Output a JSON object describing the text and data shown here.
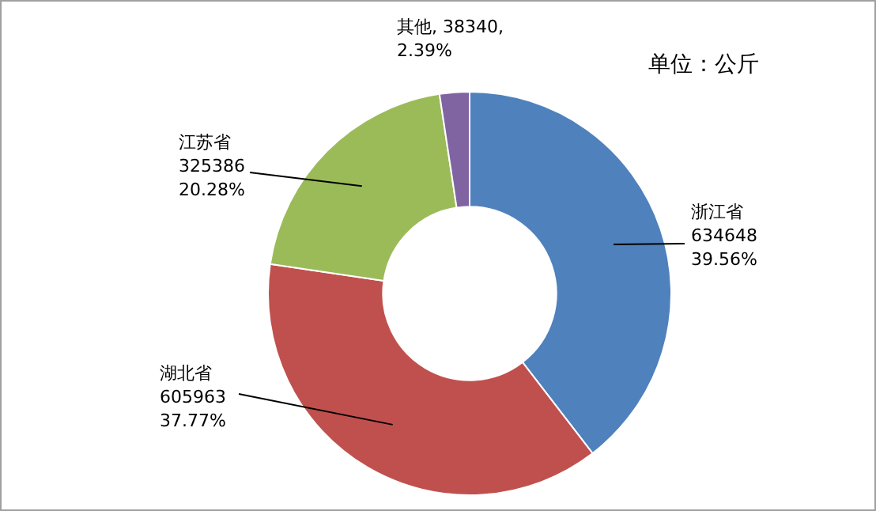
{
  "chart_data": {
    "type": "donut",
    "categories": [
      "浙江省",
      "湖北省",
      "江苏省",
      "其他"
    ],
    "values": [
      634648,
      605963,
      325386,
      38340
    ],
    "colors": [
      "#4f81bd",
      "#c0504d",
      "#9bbb59",
      "#8064a2"
    ],
    "value_labels": [
      "634648\n39.56%",
      "605963\n37.77%",
      "325386\n20.28%",
      ", 38340,\n2.39%"
    ],
    "annotations": [
      "单位：公斤"
    ],
    "legend": false
  }
}
